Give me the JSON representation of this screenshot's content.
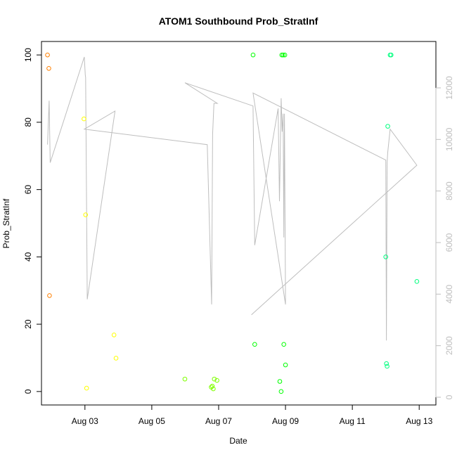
{
  "chart_data": {
    "type": "scatter",
    "title": "ATOM1 Southbound Prob_StratInf",
    "xlabel": "Date",
    "ylabel": "Prob_StratInf",
    "x_ticks": [
      {
        "label": "Aug 03",
        "day": 3
      },
      {
        "label": "Aug 05",
        "day": 5
      },
      {
        "label": "Aug 07",
        "day": 7
      },
      {
        "label": "Aug 09",
        "day": 9
      },
      {
        "label": "Aug 11",
        "day": 11
      },
      {
        "label": "Aug 13",
        "day": 13
      }
    ],
    "xlim": [
      1.7,
      13.5
    ],
    "ylim": [
      -4,
      104
    ],
    "y_ticks": [
      0,
      20,
      40,
      60,
      80,
      100
    ],
    "y2lim": [
      -300,
      13800
    ],
    "y2_ticks": [
      0,
      2000,
      4000,
      6000,
      8000,
      10000,
      12000
    ],
    "grid": false,
    "points": [
      {
        "x": 1.88,
        "y": 100,
        "color": "#ff7f00"
      },
      {
        "x": 1.92,
        "y": 96,
        "color": "#ff7f00"
      },
      {
        "x": 1.94,
        "y": 28.5,
        "color": "#ff7f00"
      },
      {
        "x": 2.97,
        "y": 81,
        "color": "#ffff00"
      },
      {
        "x": 3.02,
        "y": 52.5,
        "color": "#ffff00"
      },
      {
        "x": 3.05,
        "y": 1,
        "color": "#ffff00"
      },
      {
        "x": 3.87,
        "y": 16.8,
        "color": "#ffff00"
      },
      {
        "x": 3.93,
        "y": 9.9,
        "color": "#ffff00"
      },
      {
        "x": 5.99,
        "y": 3.7,
        "color": "#7fff00"
      },
      {
        "x": 6.78,
        "y": 1.3,
        "color": "#7fff00"
      },
      {
        "x": 6.81,
        "y": 1.6,
        "color": "#7fff00"
      },
      {
        "x": 6.84,
        "y": 0.8,
        "color": "#7fff00"
      },
      {
        "x": 6.87,
        "y": 3.7,
        "color": "#7fff00"
      },
      {
        "x": 6.95,
        "y": 3.3,
        "color": "#7fff00"
      },
      {
        "x": 8.03,
        "y": 100,
        "color": "#00ff00"
      },
      {
        "x": 8.08,
        "y": 14,
        "color": "#00ff00"
      },
      {
        "x": 8.83,
        "y": 3,
        "color": "#00ff00"
      },
      {
        "x": 8.87,
        "y": 0,
        "color": "#00ff00"
      },
      {
        "x": 8.89,
        "y": 100,
        "color": "#00ff00"
      },
      {
        "x": 8.93,
        "y": 100,
        "color": "#00ff00"
      },
      {
        "x": 8.95,
        "y": 14,
        "color": "#00ff00"
      },
      {
        "x": 8.98,
        "y": 100,
        "color": "#00ff00"
      },
      {
        "x": 9.0,
        "y": 7.9,
        "color": "#00ff00"
      },
      {
        "x": 12.0,
        "y": 40,
        "color": "#00ff7f"
      },
      {
        "x": 12.02,
        "y": 8.3,
        "color": "#00ff7f"
      },
      {
        "x": 12.04,
        "y": 7.5,
        "color": "#00ff7f"
      },
      {
        "x": 12.06,
        "y": 78.8,
        "color": "#00ff7f"
      },
      {
        "x": 12.13,
        "y": 100,
        "color": "#00ff7f"
      },
      {
        "x": 12.16,
        "y": 100,
        "color": "#00ff7f"
      },
      {
        "x": 12.93,
        "y": 32.7,
        "color": "#00ff7f"
      }
    ],
    "line_series": {
      "axis": "right",
      "color": "#bebebe",
      "x": [
        1.88,
        1.93,
        1.96,
        2.98,
        3.01,
        3.02,
        3.07,
        3.9,
        2.98,
        6.66,
        6.79,
        6.82,
        6.86,
        6.96,
        5.99,
        8.03,
        8.08,
        8.78,
        8.82,
        8.87,
        8.9,
        8.93,
        8.95,
        8.97,
        9.0,
        8.03,
        12.0,
        12.02,
        12.04,
        12.06,
        12.13,
        12.93,
        7.98
      ],
      "y": [
        9800,
        11500,
        9100,
        13200,
        12500,
        12400,
        3800,
        11100,
        10400,
        9800,
        3600,
        10200,
        11400,
        11400,
        12200,
        11300,
        5900,
        11200,
        7600,
        11600,
        10300,
        11000,
        6200,
        11000,
        3600,
        11800,
        9200,
        2200,
        9100,
        9500,
        10400,
        9000,
        3200
      ]
    }
  }
}
